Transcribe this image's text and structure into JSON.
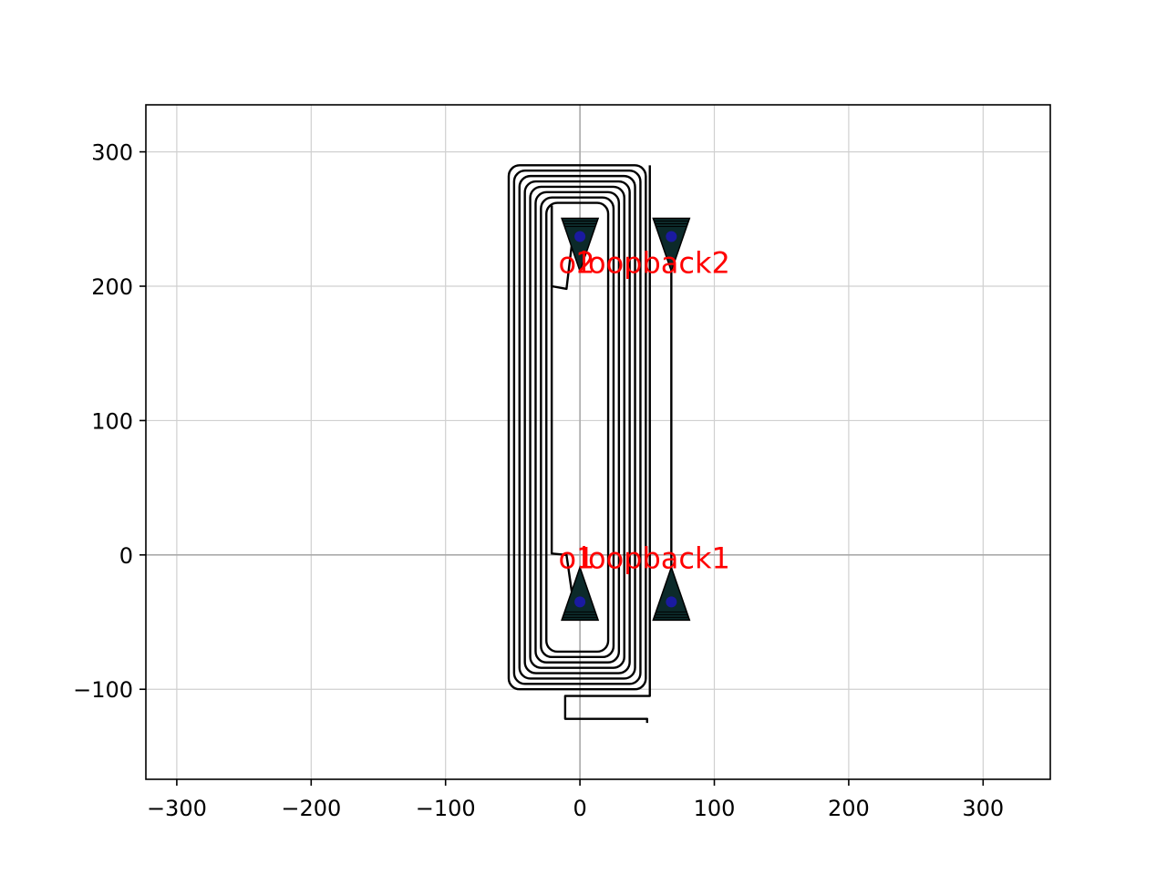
{
  "chart_data": {
    "type": "layout",
    "title": "",
    "xlabel": "",
    "ylabel": "",
    "xlim": [
      -323,
      350
    ],
    "ylim": [
      -167,
      335
    ],
    "grid": true,
    "xticks": [
      -300,
      -200,
      -100,
      0,
      100,
      200,
      300
    ],
    "yticks": [
      -100,
      0,
      100,
      200,
      300
    ],
    "xtick_labels": [
      "−300",
      "−200",
      "−100",
      "0",
      "100",
      "200",
      "300"
    ],
    "ytick_labels": [
      "−100",
      "0",
      "100",
      "200",
      "300"
    ],
    "colors": {
      "waveguide": "#000000",
      "port_fill": "#0c2a2a",
      "port_center": "#1a1aa0",
      "label": "#ff0000",
      "grid": "#d0d0d0",
      "axis_line": "#aaaaaa"
    },
    "spiral": {
      "turns": 8,
      "x_left": [
        -53,
        -49,
        -45,
        -41,
        -37,
        -33,
        -29,
        -25
      ],
      "x_right": [
        49,
        45,
        41,
        37,
        33,
        29,
        25,
        21
      ],
      "y_top": [
        290,
        286,
        282,
        278,
        274,
        270,
        266,
        262
      ],
      "y_bottom": [
        -100,
        -96,
        -92,
        -88,
        -84,
        -80,
        -76,
        -72
      ]
    },
    "loop_route": {
      "x": [
        50,
        50,
        -11,
        -11,
        52,
        52
      ],
      "y": [
        -125,
        -122,
        -122,
        -105,
        -105,
        290
      ]
    },
    "loopback_route": {
      "x": [
        68,
        68
      ],
      "y": [
        -35,
        237
      ]
    },
    "ports": [
      {
        "name": "o1",
        "x": 0,
        "y": -35,
        "direction": "up"
      },
      {
        "name": "o2",
        "x": 0,
        "y": 237,
        "direction": "down"
      },
      {
        "name": "loopback1",
        "x": 68,
        "y": -35,
        "direction": "up"
      },
      {
        "name": "loopback2",
        "x": 68,
        "y": 237,
        "direction": "down"
      }
    ],
    "annotations": [
      {
        "text": "o1",
        "x": -16,
        "y": -10
      },
      {
        "text": "o2",
        "x": -16,
        "y": 210
      },
      {
        "text": "loopback1",
        "x": 0,
        "y": -10
      },
      {
        "text": "loopback2",
        "x": 0,
        "y": 210
      }
    ]
  }
}
